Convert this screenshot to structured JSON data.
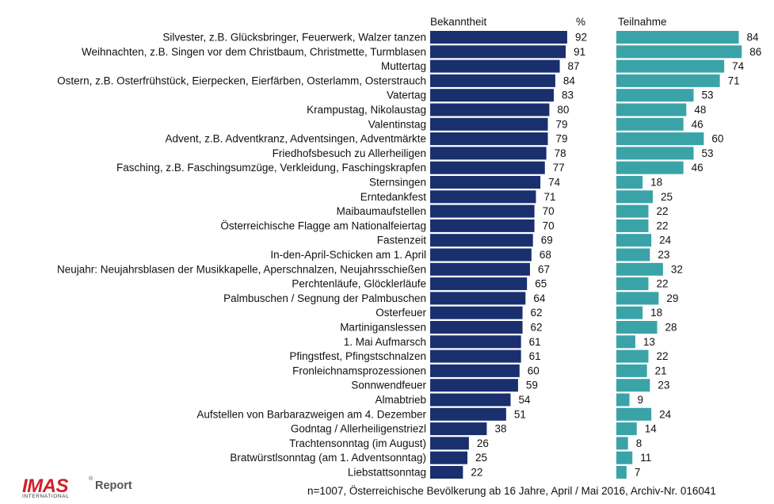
{
  "chart_data": {
    "type": "bar",
    "orientation": "horizontal",
    "categories": [
      "Silvester, z.B. Glücksbringer, Feuerwerk, Walzer tanzen",
      "Weihnachten, z.B. Singen vor dem Christbaum, Christmette, Turmblasen",
      "Muttertag",
      "Ostern, z.B. Osterfrühstück, Eierpecken, Eierfärben, Osterlamm, Osterstrauch",
      "Vatertag",
      "Krampustag, Nikolaustag",
      "Valentinstag",
      "Advent, z.B. Adventkranz, Adventsingen, Adventmärkte",
      "Friedhofsbesuch zu Allerheiligen",
      "Fasching, z.B. Faschingsumzüge, Verkleidung, Faschingskrapfen",
      "Sternsingen",
      "Erntedankfest",
      "Maibaumaufstellen",
      "Österreichische Flagge am Nationalfeiertag",
      "Fastenzeit",
      "In-den-April-Schicken am 1. April",
      "Neujahr: Neujahrsblasen der Musikkapelle, Aperschnalzen, Neujahrsschießen",
      "Perchtenläufe, Glöcklerläufe",
      "Palmbuschen / Segnung der Palmbuschen",
      "Osterfeuer",
      "Martiniganslessen",
      "1. Mai Aufmarsch",
      "Pfingstfest, Pfingstschnalzen",
      "Fronleichnamsprozessionen",
      "Sonnwendfeuer",
      "Almabtrieb",
      "Aufstellen von Barbarazweigen am 4. Dezember",
      "Godntag / Allerheiligenstriezl",
      "Trachtensonntag (im August)",
      "Bratwürstlsonntag (am 1. Adventsonntag)",
      "Liebstattsonntag"
    ],
    "series": [
      {
        "name": "Bekanntheit",
        "color": "#1a2f6e",
        "values": [
          92,
          91,
          87,
          84,
          83,
          80,
          79,
          79,
          78,
          77,
          74,
          71,
          70,
          70,
          69,
          68,
          67,
          65,
          64,
          62,
          62,
          61,
          61,
          60,
          59,
          54,
          51,
          38,
          26,
          25,
          22
        ]
      },
      {
        "name": "Teilnahme",
        "color": "#3aa3a8",
        "values": [
          84,
          86,
          74,
          71,
          53,
          48,
          46,
          60,
          53,
          46,
          18,
          25,
          22,
          22,
          24,
          23,
          32,
          22,
          29,
          18,
          28,
          13,
          22,
          21,
          23,
          9,
          24,
          14,
          8,
          11,
          7
        ]
      }
    ],
    "unit_label": "%",
    "xlim": [
      0,
      100
    ]
  },
  "footer": {
    "note": "n=1007, Österreichische Bevölkerung ab 16 Jahre, April / Mai 2016, Archiv-Nr. 016041"
  },
  "logo": {
    "brand": "IMAS",
    "sub": "INTERNATIONAL",
    "report": "Report",
    "reg": "®",
    "colors": {
      "brand": "#d01f2a",
      "report": "#555555"
    }
  }
}
